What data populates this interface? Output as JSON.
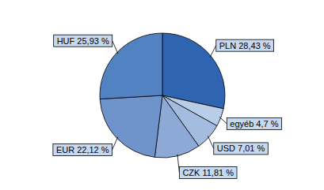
{
  "chart_data": {
    "type": "pie",
    "categories": [
      "PLN",
      "egyéb",
      "USD",
      "CZK",
      "EUR",
      "HUF"
    ],
    "values": [
      28.43,
      4.7,
      7.01,
      11.81,
      22.12,
      25.93
    ],
    "value_labels": [
      "28,43 %",
      "4,7 %",
      "7,01 %",
      "11,81 %",
      "22,12 %",
      "25,93 %"
    ],
    "colors": [
      "#2e64b0",
      "#b9cde9",
      "#a3bce0",
      "#8daad6",
      "#6f93cb",
      "#5282c2"
    ],
    "data_labels": true
  }
}
